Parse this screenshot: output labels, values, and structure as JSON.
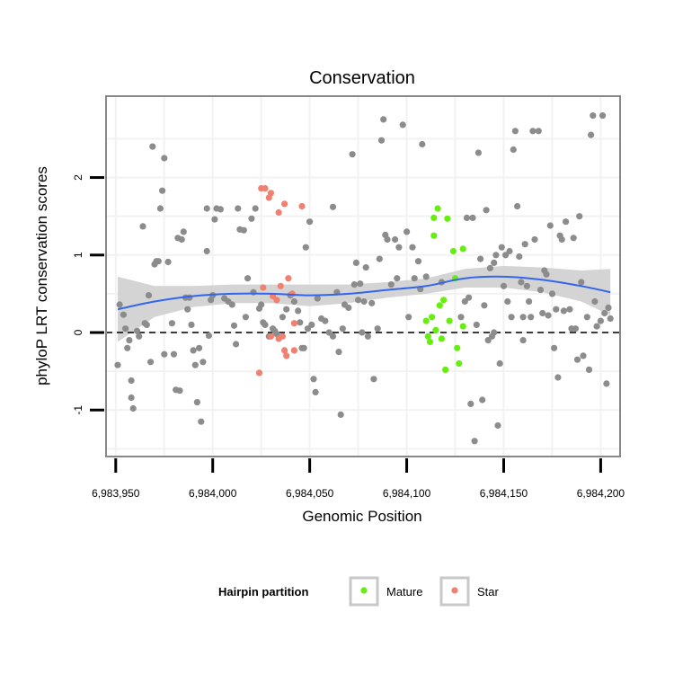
{
  "chart_data": {
    "type": "scatter",
    "title": "Conservation",
    "xlabel": "Genomic Position",
    "ylabel": "phyloP LRT conservation scores",
    "xlim": [
      6983945,
      6984210
    ],
    "ylim": [
      -1.6,
      3.05
    ],
    "x_ticks": [
      6983950,
      6984000,
      6984050,
      6984100,
      6984150,
      6984200
    ],
    "x_tick_labels": [
      "6,983,950",
      "6,984,000",
      "6,984,050",
      "6,984,100",
      "6,984,150",
      "6,984,200"
    ],
    "y_ticks": [
      -1,
      0,
      1,
      2
    ],
    "y_tick_labels": [
      "-1",
      "0",
      "1",
      "2"
    ],
    "reference_line": {
      "y": 0,
      "style": "dashed"
    },
    "colors": {
      "other": "#8c8c8c",
      "Mature": "#66ee11",
      "Star": "#f08070",
      "smooth_line": "#3366ee",
      "confidence_band": "#cfcfcf",
      "panel_border": "#888888",
      "grid": "#f2f2f2"
    },
    "legend": {
      "title": "Hairpin partition",
      "position": "bottom",
      "entries": [
        {
          "label": "Mature",
          "color": "#66ee11"
        },
        {
          "label": "Star",
          "color": "#f08070"
        }
      ]
    },
    "smooth": {
      "x": [
        6983951,
        6983970,
        6983990,
        6984010,
        6984030,
        6984050,
        6984070,
        6984090,
        6984110,
        6984130,
        6984150,
        6984170,
        6984190,
        6984205
      ],
      "y": [
        0.3,
        0.4,
        0.47,
        0.5,
        0.5,
        0.48,
        0.5,
        0.55,
        0.6,
        0.7,
        0.72,
        0.68,
        0.6,
        0.52
      ],
      "lower": [
        -0.12,
        0.2,
        0.33,
        0.38,
        0.38,
        0.34,
        0.38,
        0.45,
        0.5,
        0.58,
        0.58,
        0.52,
        0.4,
        0.22
      ],
      "upper": [
        0.72,
        0.6,
        0.6,
        0.62,
        0.62,
        0.62,
        0.62,
        0.65,
        0.7,
        0.82,
        0.86,
        0.84,
        0.8,
        0.82
      ]
    },
    "series": [
      {
        "name": "other",
        "points": [
          [
            6983951,
            -0.42
          ],
          [
            6983952,
            0.36
          ],
          [
            6983954,
            0.23
          ],
          [
            6983955,
            0.05
          ],
          [
            6983956,
            -0.2
          ],
          [
            6983957,
            -0.1
          ],
          [
            6983958,
            -0.62
          ],
          [
            6983958,
            -0.84
          ],
          [
            6983959,
            -0.98
          ],
          [
            6983961,
            0.02
          ],
          [
            6983962,
            -0.05
          ],
          [
            6983964,
            1.37
          ],
          [
            6983965,
            0.12
          ],
          [
            6983966,
            0.1
          ],
          [
            6983968,
            -0.38
          ],
          [
            6983967,
            0.48
          ],
          [
            6983969,
            2.4
          ],
          [
            6983970,
            0.88
          ],
          [
            6983971,
            0.92
          ],
          [
            6983972,
            0.92
          ],
          [
            6983973,
            1.6
          ],
          [
            6983974,
            1.83
          ],
          [
            6983975,
            2.25
          ],
          [
            6983975,
            -0.28
          ],
          [
            6983977,
            0.91
          ],
          [
            6983979,
            0.12
          ],
          [
            6983980,
            -0.28
          ],
          [
            6983981,
            -0.74
          ],
          [
            6983982,
            1.22
          ],
          [
            6983983,
            -0.75
          ],
          [
            6983984,
            1.2
          ],
          [
            6983985,
            1.3
          ],
          [
            6983986,
            0.45
          ],
          [
            6983987,
            0.3
          ],
          [
            6983988,
            0.45
          ],
          [
            6983989,
            0.1
          ],
          [
            6983990,
            -0.23
          ],
          [
            6983991,
            -0.42
          ],
          [
            6983992,
            -0.9
          ],
          [
            6983993,
            -0.2
          ],
          [
            6983994,
            -1.15
          ],
          [
            6983995,
            -0.38
          ],
          [
            6983997,
            1.05
          ],
          [
            6983997,
            1.6
          ],
          [
            6983998,
            -0.04
          ],
          [
            6983999,
            0.42
          ],
          [
            6984000,
            0.48
          ],
          [
            6984001,
            1.46
          ],
          [
            6984002,
            1.6
          ],
          [
            6984004,
            1.59
          ],
          [
            6984006,
            0.44
          ],
          [
            6984008,
            0.4
          ],
          [
            6984010,
            0.36
          ],
          [
            6984011,
            0.09
          ],
          [
            6984012,
            -0.15
          ],
          [
            6984013,
            1.6
          ],
          [
            6984014,
            1.33
          ],
          [
            6984016,
            1.32
          ],
          [
            6984017,
            0.2
          ],
          [
            6984018,
            0.7
          ],
          [
            6984020,
            1.47
          ],
          [
            6984021,
            0.52
          ],
          [
            6984022,
            1.6
          ],
          [
            6984024,
            0.31
          ],
          [
            6984025,
            0.36
          ],
          [
            6984026,
            0.13
          ],
          [
            6984027,
            0.1
          ],
          [
            6984029,
            -0.05
          ],
          [
            6984031,
            0.05
          ],
          [
            6984032,
            0.02
          ],
          [
            6984033,
            -0.02
          ],
          [
            6984036,
            0.2
          ],
          [
            6984038,
            0.3
          ],
          [
            6984040,
            0.48
          ],
          [
            6984042,
            0.4
          ],
          [
            6984044,
            0.28
          ],
          [
            6984045,
            0.13
          ],
          [
            6984046,
            -0.2
          ],
          [
            6984047,
            -0.2
          ],
          [
            6984048,
            1.1
          ],
          [
            6984049,
            0.05
          ],
          [
            6984050,
            1.43
          ],
          [
            6984051,
            0.1
          ],
          [
            6984052,
            -0.6
          ],
          [
            6984053,
            -0.77
          ],
          [
            6984054,
            0.44
          ],
          [
            6984056,
            0.18
          ],
          [
            6984058,
            0.15
          ],
          [
            6984060,
            0.0
          ],
          [
            6984062,
            -0.05
          ],
          [
            6984064,
            0.52
          ],
          [
            6984065,
            -0.25
          ],
          [
            6984066,
            -1.06
          ],
          [
            6984067,
            0.05
          ],
          [
            6984068,
            0.36
          ],
          [
            6984070,
            0.32
          ],
          [
            6984072,
            2.3
          ],
          [
            6984073,
            0.62
          ],
          [
            6984074,
            0.9
          ],
          [
            6984075,
            0.42
          ],
          [
            6984076,
            0.63
          ],
          [
            6984077,
            0.0
          ],
          [
            6984078,
            0.4
          ],
          [
            6984079,
            0.84
          ],
          [
            6984080,
            -0.05
          ],
          [
            6984082,
            0.38
          ],
          [
            6984083,
            -0.6
          ],
          [
            6984085,
            0.05
          ],
          [
            6984086,
            0.95
          ],
          [
            6984087,
            2.48
          ],
          [
            6984088,
            2.75
          ],
          [
            6984089,
            1.26
          ],
          [
            6984090,
            1.2
          ],
          [
            6984092,
            0.62
          ],
          [
            6984094,
            1.2
          ],
          [
            6984095,
            0.7
          ],
          [
            6984096,
            1.1
          ],
          [
            6984098,
            2.68
          ],
          [
            6984100,
            1.3
          ],
          [
            6984101,
            0.2
          ],
          [
            6984103,
            1.1
          ],
          [
            6984104,
            0.7
          ],
          [
            6984106,
            0.92
          ],
          [
            6984107,
            0.56
          ],
          [
            6984108,
            2.43
          ],
          [
            6984128,
            0.2
          ],
          [
            6984130,
            0.4
          ],
          [
            6984131,
            1.48
          ],
          [
            6984132,
            0.45
          ],
          [
            6984133,
            -0.92
          ],
          [
            6984134,
            1.48
          ],
          [
            6984135,
            -1.4
          ],
          [
            6984136,
            0.1
          ],
          [
            6984137,
            2.32
          ],
          [
            6984138,
            0.95
          ],
          [
            6984139,
            -0.87
          ],
          [
            6984140,
            0.35
          ],
          [
            6984141,
            1.58
          ],
          [
            6984142,
            -0.1
          ],
          [
            6984143,
            0.83
          ],
          [
            6984144,
            -0.05
          ],
          [
            6984145,
            0.9
          ],
          [
            6984146,
            1.0
          ],
          [
            6984147,
            -1.2
          ],
          [
            6984148,
            -0.4
          ],
          [
            6984149,
            1.1
          ],
          [
            6984150,
            0.6
          ],
          [
            6984151,
            1.0
          ],
          [
            6984152,
            0.4
          ],
          [
            6984153,
            1.05
          ],
          [
            6984154,
            0.2
          ],
          [
            6984155,
            2.36
          ],
          [
            6984156,
            2.6
          ],
          [
            6984157,
            1.63
          ],
          [
            6984158,
            0.98
          ],
          [
            6984159,
            0.65
          ],
          [
            6984160,
            0.2
          ],
          [
            6984161,
            1.14
          ],
          [
            6984162,
            0.6
          ],
          [
            6984163,
            0.4
          ],
          [
            6984164,
            0.2
          ],
          [
            6984165,
            2.6
          ],
          [
            6984166,
            1.2
          ],
          [
            6984168,
            2.6
          ],
          [
            6984169,
            0.55
          ],
          [
            6984170,
            0.25
          ],
          [
            6984171,
            0.8
          ],
          [
            6984172,
            0.75
          ],
          [
            6984173,
            0.22
          ],
          [
            6984174,
            1.38
          ],
          [
            6984175,
            0.5
          ],
          [
            6984176,
            -0.2
          ],
          [
            6984177,
            0.3
          ],
          [
            6984178,
            -0.58
          ],
          [
            6984179,
            1.25
          ],
          [
            6984180,
            1.2
          ],
          [
            6984181,
            0.28
          ],
          [
            6984182,
            1.43
          ],
          [
            6984184,
            0.3
          ],
          [
            6984185,
            0.05
          ],
          [
            6984186,
            1.22
          ],
          [
            6984187,
            0.05
          ],
          [
            6984188,
            -0.35
          ],
          [
            6984189,
            1.5
          ],
          [
            6984190,
            0.65
          ],
          [
            6984191,
            -0.3
          ],
          [
            6984193,
            0.2
          ],
          [
            6984194,
            -0.48
          ],
          [
            6984195,
            2.55
          ],
          [
            6984196,
            2.8
          ],
          [
            6984197,
            0.4
          ],
          [
            6984198,
            0.08
          ],
          [
            6984200,
            0.15
          ],
          [
            6984201,
            2.8
          ],
          [
            6984202,
            0.25
          ],
          [
            6984203,
            -0.66
          ],
          [
            6984204,
            0.32
          ],
          [
            6984205,
            0.18
          ],
          [
            6984110,
            0.72
          ],
          [
            6984118,
            0.65
          ],
          [
            6984160,
            -0.1
          ],
          [
            6984145,
            0.0
          ],
          [
            6984062,
            1.62
          ]
        ]
      },
      {
        "name": "Mature",
        "points": [
          [
            6984110,
            0.15
          ],
          [
            6984111,
            -0.05
          ],
          [
            6984112,
            -0.12
          ],
          [
            6984113,
            0.2
          ],
          [
            6984114,
            1.25
          ],
          [
            6984114,
            1.48
          ],
          [
            6984115,
            0.03
          ],
          [
            6984116,
            1.6
          ],
          [
            6984117,
            0.35
          ],
          [
            6984118,
            -0.08
          ],
          [
            6984119,
            0.42
          ],
          [
            6984120,
            -0.48
          ],
          [
            6984121,
            1.47
          ],
          [
            6984122,
            0.15
          ],
          [
            6984124,
            1.05
          ],
          [
            6984125,
            0.7
          ],
          [
            6984126,
            -0.2
          ],
          [
            6984127,
            -0.4
          ],
          [
            6984129,
            0.08
          ],
          [
            6984129,
            1.08
          ]
        ]
      },
      {
        "name": "Star",
        "points": [
          [
            6984024,
            -0.52
          ],
          [
            6984025,
            1.86
          ],
          [
            6984026,
            0.58
          ],
          [
            6984027,
            1.86
          ],
          [
            6984029,
            1.74
          ],
          [
            6984030,
            -0.05
          ],
          [
            6984030,
            1.8
          ],
          [
            6984031,
            0.47
          ],
          [
            6984033,
            0.42
          ],
          [
            6984034,
            -0.08
          ],
          [
            6984034,
            1.55
          ],
          [
            6984035,
            0.6
          ],
          [
            6984036,
            -0.05
          ],
          [
            6984037,
            -0.23
          ],
          [
            6984037,
            1.66
          ],
          [
            6984038,
            -0.3
          ],
          [
            6984039,
            0.7
          ],
          [
            6984041,
            0.5
          ],
          [
            6984042,
            -0.23
          ],
          [
            6984042,
            0.12
          ],
          [
            6984046,
            1.63
          ]
        ]
      }
    ]
  }
}
